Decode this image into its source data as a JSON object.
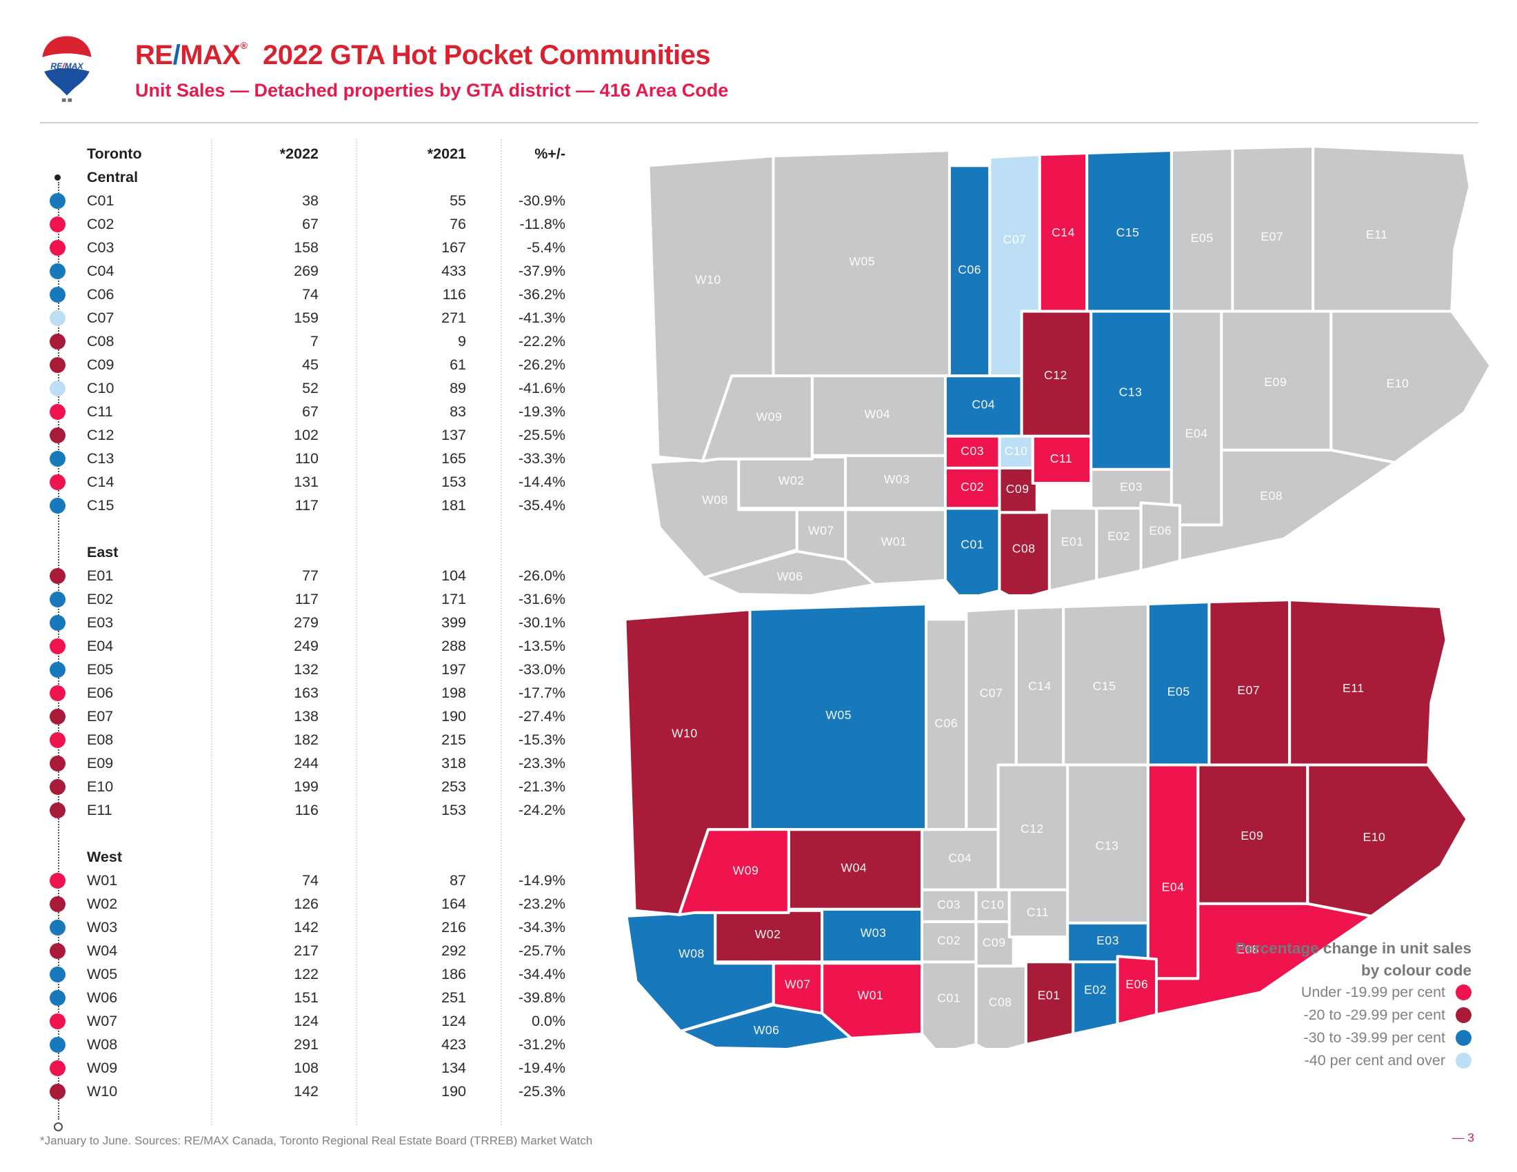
{
  "header": {
    "brand": {
      "re": "RE",
      "slash": "/",
      "max": "MAX",
      "reg": "®",
      "balloon_text_re": "RE",
      "balloon_text_slash": "/",
      "balloon_text_max": "MAX"
    },
    "title": "2022 GTA Hot Pocket Communities",
    "subtitle": "Unit Sales — Detached properties by GTA district — 416 Area Code"
  },
  "colors": {
    "pink": "#EF134E",
    "crimson": "#A91C39",
    "blue": "#1878BC",
    "lightblue": "#BCDFF5",
    "map_gray": "#C7C8CA",
    "brand_red": "#D9222F",
    "slash_blue": "#1465B0",
    "subtitle_red": "#E61A4D",
    "page_red": "#C9234A"
  },
  "chart_data": {
    "type": "table",
    "title": "2022 GTA Hot Pocket Communities — Unit Sales, Detached properties by GTA district, 416 Area Code",
    "region_label": "Toronto",
    "columns": [
      "*2022",
      "*2021",
      "%+/-"
    ],
    "color_categories": {
      "pink": "Under -19.99 per cent",
      "crimson": "-20 to -29.99 per cent",
      "blue": "-30 to -39.99 per cent",
      "lightblue": "-40 per cent and over"
    },
    "sections": [
      {
        "name": "Central",
        "rows": [
          {
            "code": "C01",
            "v2022": 38,
            "v2021": 55,
            "pct": "-30.9%",
            "cat": "blue"
          },
          {
            "code": "C02",
            "v2022": 67,
            "v2021": 76,
            "pct": "-11.8%",
            "cat": "pink"
          },
          {
            "code": "C03",
            "v2022": 158,
            "v2021": 167,
            "pct": "-5.4%",
            "cat": "pink"
          },
          {
            "code": "C04",
            "v2022": 269,
            "v2021": 433,
            "pct": "-37.9%",
            "cat": "blue"
          },
          {
            "code": "C06",
            "v2022": 74,
            "v2021": 116,
            "pct": "-36.2%",
            "cat": "blue"
          },
          {
            "code": "C07",
            "v2022": 159,
            "v2021": 271,
            "pct": "-41.3%",
            "cat": "lightblue"
          },
          {
            "code": "C08",
            "v2022": 7,
            "v2021": 9,
            "pct": "-22.2%",
            "cat": "crimson"
          },
          {
            "code": "C09",
            "v2022": 45,
            "v2021": 61,
            "pct": "-26.2%",
            "cat": "crimson"
          },
          {
            "code": "C10",
            "v2022": 52,
            "v2021": 89,
            "pct": "-41.6%",
            "cat": "lightblue"
          },
          {
            "code": "C11",
            "v2022": 67,
            "v2021": 83,
            "pct": "-19.3%",
            "cat": "pink"
          },
          {
            "code": "C12",
            "v2022": 102,
            "v2021": 137,
            "pct": "-25.5%",
            "cat": "crimson"
          },
          {
            "code": "C13",
            "v2022": 110,
            "v2021": 165,
            "pct": "-33.3%",
            "cat": "blue"
          },
          {
            "code": "C14",
            "v2022": 131,
            "v2021": 153,
            "pct": "-14.4%",
            "cat": "pink"
          },
          {
            "code": "C15",
            "v2022": 117,
            "v2021": 181,
            "pct": "-35.4%",
            "cat": "blue"
          }
        ]
      },
      {
        "name": "East",
        "rows": [
          {
            "code": "E01",
            "v2022": 77,
            "v2021": 104,
            "pct": "-26.0%",
            "cat": "crimson"
          },
          {
            "code": "E02",
            "v2022": 117,
            "v2021": 171,
            "pct": "-31.6%",
            "cat": "blue"
          },
          {
            "code": "E03",
            "v2022": 279,
            "v2021": 399,
            "pct": "-30.1%",
            "cat": "blue"
          },
          {
            "code": "E04",
            "v2022": 249,
            "v2021": 288,
            "pct": "-13.5%",
            "cat": "pink"
          },
          {
            "code": "E05",
            "v2022": 132,
            "v2021": 197,
            "pct": "-33.0%",
            "cat": "blue"
          },
          {
            "code": "E06",
            "v2022": 163,
            "v2021": 198,
            "pct": "-17.7%",
            "cat": "pink"
          },
          {
            "code": "E07",
            "v2022": 138,
            "v2021": 190,
            "pct": "-27.4%",
            "cat": "crimson"
          },
          {
            "code": "E08",
            "v2022": 182,
            "v2021": 215,
            "pct": "-15.3%",
            "cat": "pink"
          },
          {
            "code": "E09",
            "v2022": 244,
            "v2021": 318,
            "pct": "-23.3%",
            "cat": "crimson"
          },
          {
            "code": "E10",
            "v2022": 199,
            "v2021": 253,
            "pct": "-21.3%",
            "cat": "crimson"
          },
          {
            "code": "E11",
            "v2022": 116,
            "v2021": 153,
            "pct": "-24.2%",
            "cat": "crimson"
          }
        ]
      },
      {
        "name": "West",
        "rows": [
          {
            "code": "W01",
            "v2022": 74,
            "v2021": 87,
            "pct": "-14.9%",
            "cat": "pink"
          },
          {
            "code": "W02",
            "v2022": 126,
            "v2021": 164,
            "pct": "-23.2%",
            "cat": "crimson"
          },
          {
            "code": "W03",
            "v2022": 142,
            "v2021": 216,
            "pct": "-34.3%",
            "cat": "blue"
          },
          {
            "code": "W04",
            "v2022": 217,
            "v2021": 292,
            "pct": "-25.7%",
            "cat": "crimson"
          },
          {
            "code": "W05",
            "v2022": 122,
            "v2021": 186,
            "pct": "-34.4%",
            "cat": "blue"
          },
          {
            "code": "W06",
            "v2022": 151,
            "v2021": 251,
            "pct": "-39.8%",
            "cat": "blue"
          },
          {
            "code": "W07",
            "v2022": 124,
            "v2021": 124,
            "pct": "0.0%",
            "cat": "pink"
          },
          {
            "code": "W08",
            "v2022": 291,
            "v2021": 423,
            "pct": "-31.2%",
            "cat": "blue"
          },
          {
            "code": "W09",
            "v2022": 108,
            "v2021": 134,
            "pct": "-19.4%",
            "cat": "pink"
          },
          {
            "code": "W10",
            "v2022": 142,
            "v2021": 190,
            "pct": "-25.3%",
            "cat": "crimson"
          }
        ]
      }
    ],
    "maps": {
      "top_map": "Central (C) districts coloured by percentage change; East and West districts grey",
      "bottom_map": "East (E) and West (W) districts coloured by percentage change; Central districts grey"
    }
  },
  "legend": {
    "title_line1": "Percentage change in unit sales",
    "title_line2": "by colour code",
    "items": [
      {
        "label": "Under -19.99 per cent",
        "cat": "pink"
      },
      {
        "label": "-20 to -29.99 per cent",
        "cat": "crimson"
      },
      {
        "label": "-30 to -39.99 per cent",
        "cat": "blue"
      },
      {
        "label": "-40 per cent and over",
        "cat": "lightblue"
      }
    ]
  },
  "footer": {
    "source": "*January to June. Sources: RE/MAX Canada, Toronto Regional Real Estate Board (TRREB) Market Watch",
    "page": "— 3"
  }
}
